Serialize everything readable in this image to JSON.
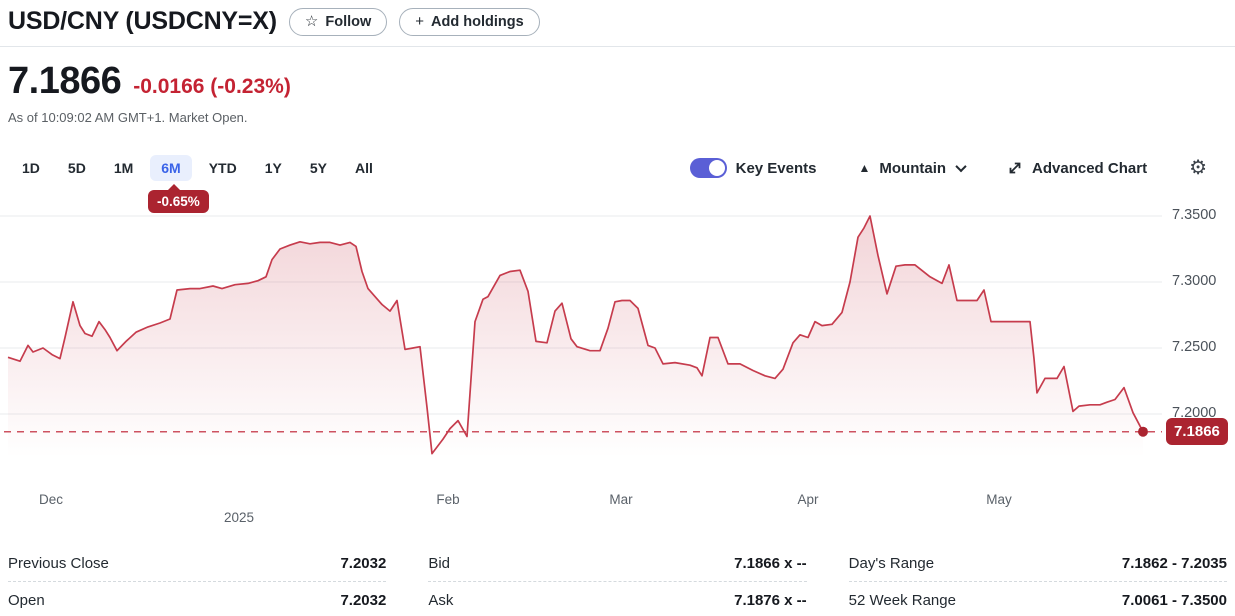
{
  "header": {
    "title": "USD/CNY (USDCNY=X)",
    "follow_label": "Follow",
    "add_holdings_label": "Add holdings"
  },
  "icons": {
    "star": "☆",
    "plus": "+",
    "mountain": "▲",
    "gear": "⚙"
  },
  "quote": {
    "price": "7.1866",
    "change": "-0.0166 (-0.23%)",
    "as_of": "As of 10:09:02 AM GMT+1. Market Open."
  },
  "toolbar": {
    "ranges": [
      "1D",
      "5D",
      "1M",
      "6M",
      "YTD",
      "1Y",
      "5Y",
      "All"
    ],
    "selected_range": "6M",
    "range_change_badge": "-0.65%",
    "key_events_label": "Key Events",
    "key_events_on": true,
    "chart_type_label": "Mountain",
    "advanced_chart_label": "Advanced Chart"
  },
  "chart_data": {
    "type": "area",
    "title": "USD/CNY 6-month price chart",
    "line_color": "#c63c4d",
    "dashed_color": "#cd5260",
    "badge_color": "#ab2430",
    "grid_color": "#e9ebee",
    "current_price": 7.1866,
    "current_price_label": "7.1866",
    "y_axis": {
      "ticks": [
        7.35,
        7.3,
        7.25,
        7.2
      ],
      "tick_labels": [
        "7.3500",
        "7.3000",
        "7.2500",
        "7.2000"
      ],
      "range": [
        7.147,
        7.3667
      ]
    },
    "x_axis": {
      "labels": [
        {
          "text": "Dec",
          "pos": 0.044,
          "row": 1
        },
        {
          "text": "2025",
          "pos": 0.2057,
          "row": 2
        },
        {
          "text": "Feb",
          "pos": 0.3856,
          "row": 1
        },
        {
          "text": "Mar",
          "pos": 0.5344,
          "row": 1
        },
        {
          "text": "Apr",
          "pos": 0.6954,
          "row": 1
        },
        {
          "text": "May",
          "pos": 0.8597,
          "row": 1
        }
      ]
    },
    "points": [
      [
        8,
        7.243
      ],
      [
        20,
        7.24
      ],
      [
        28,
        7.252
      ],
      [
        33,
        7.247
      ],
      [
        43,
        7.25
      ],
      [
        52,
        7.245
      ],
      [
        60,
        7.242
      ],
      [
        65,
        7.258
      ],
      [
        73,
        7.285
      ],
      [
        80,
        7.267
      ],
      [
        85,
        7.261
      ],
      [
        92,
        7.259
      ],
      [
        99,
        7.27
      ],
      [
        105,
        7.264
      ],
      [
        110,
        7.258
      ],
      [
        117,
        7.248
      ],
      [
        126,
        7.255
      ],
      [
        136,
        7.262
      ],
      [
        148,
        7.266
      ],
      [
        160,
        7.269
      ],
      [
        170,
        7.272
      ],
      [
        177,
        7.294
      ],
      [
        190,
        7.295
      ],
      [
        200,
        7.295
      ],
      [
        213,
        7.297
      ],
      [
        222,
        7.295
      ],
      [
        235,
        7.298
      ],
      [
        248,
        7.299
      ],
      [
        258,
        7.301
      ],
      [
        266,
        7.304
      ],
      [
        272,
        7.317
      ],
      [
        280,
        7.325
      ],
      [
        290,
        7.328
      ],
      [
        300,
        7.3305
      ],
      [
        310,
        7.329
      ],
      [
        320,
        7.33
      ],
      [
        330,
        7.33
      ],
      [
        340,
        7.328
      ],
      [
        350,
        7.33
      ],
      [
        356,
        7.327
      ],
      [
        362,
        7.308
      ],
      [
        368,
        7.295
      ],
      [
        375,
        7.289
      ],
      [
        382,
        7.283
      ],
      [
        390,
        7.278
      ],
      [
        397,
        7.286
      ],
      [
        405,
        7.249
      ],
      [
        413,
        7.25
      ],
      [
        420,
        7.251
      ],
      [
        427,
        7.205
      ],
      [
        432,
        7.17
      ],
      [
        443,
        7.181
      ],
      [
        450,
        7.189
      ],
      [
        458,
        7.195
      ],
      [
        467,
        7.183
      ],
      [
        475,
        7.27
      ],
      [
        483,
        7.287
      ],
      [
        488,
        7.289
      ],
      [
        500,
        7.305
      ],
      [
        510,
        7.308
      ],
      [
        520,
        7.309
      ],
      [
        528,
        7.293
      ],
      [
        536,
        7.255
      ],
      [
        547,
        7.254
      ],
      [
        555,
        7.278
      ],
      [
        562,
        7.284
      ],
      [
        571,
        7.257
      ],
      [
        577,
        7.251
      ],
      [
        590,
        7.248
      ],
      [
        600,
        7.248
      ],
      [
        608,
        7.265
      ],
      [
        615,
        7.285
      ],
      [
        622,
        7.286
      ],
      [
        630,
        7.286
      ],
      [
        638,
        7.28
      ],
      [
        648,
        7.252
      ],
      [
        655,
        7.25
      ],
      [
        663,
        7.238
      ],
      [
        675,
        7.239
      ],
      [
        690,
        7.237
      ],
      [
        697,
        7.235
      ],
      [
        702,
        7.229
      ],
      [
        710,
        7.258
      ],
      [
        718,
        7.258
      ],
      [
        728,
        7.238
      ],
      [
        740,
        7.238
      ],
      [
        753,
        7.233
      ],
      [
        765,
        7.229
      ],
      [
        775,
        7.227
      ],
      [
        783,
        7.234
      ],
      [
        793,
        7.254
      ],
      [
        800,
        7.26
      ],
      [
        808,
        7.258
      ],
      [
        815,
        7.27
      ],
      [
        822,
        7.267
      ],
      [
        832,
        7.268
      ],
      [
        842,
        7.277
      ],
      [
        850,
        7.3
      ],
      [
        858,
        7.334
      ],
      [
        864,
        7.341
      ],
      [
        870,
        7.35
      ],
      [
        878,
        7.32
      ],
      [
        887,
        7.291
      ],
      [
        896,
        7.312
      ],
      [
        905,
        7.313
      ],
      [
        915,
        7.313
      ],
      [
        930,
        7.304
      ],
      [
        942,
        7.299
      ],
      [
        949,
        7.313
      ],
      [
        957,
        7.286
      ],
      [
        967,
        7.286
      ],
      [
        977,
        7.286
      ],
      [
        984,
        7.294
      ],
      [
        991,
        7.27
      ],
      [
        1005,
        7.27
      ],
      [
        1020,
        7.27
      ],
      [
        1030,
        7.27
      ],
      [
        1034,
        7.242
      ],
      [
        1037,
        7.216
      ],
      [
        1045,
        7.227
      ],
      [
        1057,
        7.227
      ],
      [
        1064,
        7.236
      ],
      [
        1073,
        7.202
      ],
      [
        1079,
        7.206
      ],
      [
        1090,
        7.207
      ],
      [
        1100,
        7.207
      ],
      [
        1107,
        7.209
      ],
      [
        1115,
        7.211
      ],
      [
        1124,
        7.22
      ],
      [
        1133,
        7.201
      ],
      [
        1143,
        7.1866
      ]
    ]
  },
  "stats": {
    "columns": [
      {
        "rows": [
          {
            "label": "Previous Close",
            "value": "7.2032"
          },
          {
            "label": "Open",
            "value": "7.2032"
          }
        ]
      },
      {
        "rows": [
          {
            "label": "Bid",
            "value": "7.1866 x --"
          },
          {
            "label": "Ask",
            "value": "7.1876 x --"
          }
        ]
      },
      {
        "rows": [
          {
            "label": "Day's Range",
            "value": "7.1862 - 7.2035"
          },
          {
            "label": "52 Week Range",
            "value": "7.0061 - 7.3500"
          }
        ]
      }
    ]
  }
}
